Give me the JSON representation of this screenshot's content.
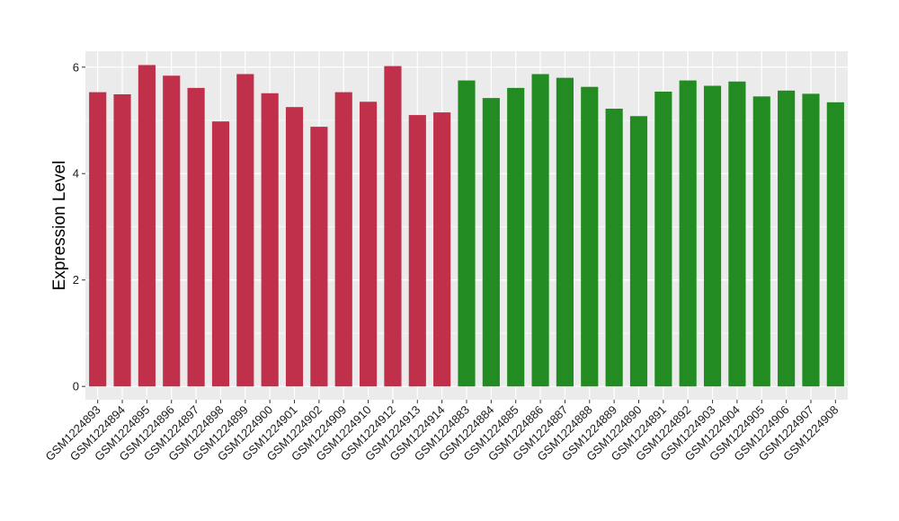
{
  "chart_data": {
    "type": "bar",
    "title": "",
    "xlabel": "",
    "ylabel": "Expression Level",
    "ylim": [
      -0.25,
      6.3
    ],
    "yticks": [
      0,
      2,
      4,
      6
    ],
    "grid": true,
    "legend": "none",
    "categories": [
      "GSM1224893",
      "GSM1224894",
      "GSM1224895",
      "GSM1224896",
      "GSM1224897",
      "GSM1224898",
      "GSM1224899",
      "GSM1224900",
      "GSM1224901",
      "GSM1224902",
      "GSM1224909",
      "GSM1224910",
      "GSM1224912",
      "GSM1224913",
      "GSM1224914",
      "GSM1224883",
      "GSM1224884",
      "GSM1224885",
      "GSM1224886",
      "GSM1224887",
      "GSM1224888",
      "GSM1224889",
      "GSM1224890",
      "GSM1224891",
      "GSM1224892",
      "GSM1224903",
      "GSM1224904",
      "GSM1224905",
      "GSM1224906",
      "GSM1224907",
      "GSM1224908"
    ],
    "values": [
      5.53,
      5.49,
      6.04,
      5.84,
      5.61,
      4.98,
      5.87,
      5.51,
      5.25,
      4.88,
      5.53,
      5.35,
      6.02,
      5.1,
      5.15,
      5.75,
      5.42,
      5.61,
      5.87,
      5.8,
      5.63,
      5.22,
      5.08,
      5.54,
      5.75,
      5.65,
      5.73,
      5.45,
      5.56,
      5.5,
      5.34
    ],
    "bar_colors": [
      "#C0304A",
      "#C0304A",
      "#C0304A",
      "#C0304A",
      "#C0304A",
      "#C0304A",
      "#C0304A",
      "#C0304A",
      "#C0304A",
      "#C0304A",
      "#C0304A",
      "#C0304A",
      "#C0304A",
      "#C0304A",
      "#C0304A",
      "#228B22",
      "#228B22",
      "#228B22",
      "#228B22",
      "#228B22",
      "#228B22",
      "#228B22",
      "#228B22",
      "#228B22",
      "#228B22",
      "#228B22",
      "#228B22",
      "#228B22",
      "#228B22",
      "#228B22",
      "#228B22"
    ],
    "colors": {
      "panel_background": "#EBEBEB",
      "grid_line": "#FFFFFF",
      "axis_tick": "#333333"
    }
  }
}
